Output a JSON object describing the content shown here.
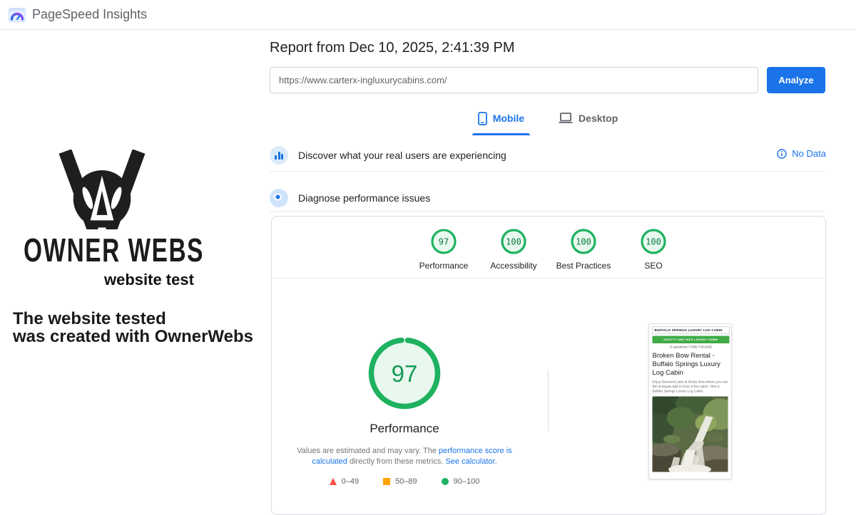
{
  "header": {
    "app_title": "PageSpeed Insights"
  },
  "promo": {
    "brand_name": "OWNER WEBS",
    "subtitle": "website test",
    "note_line1": "The website tested",
    "note_line2": "was created with OwnerWebs"
  },
  "report": {
    "title": "Report from Dec 10, 2025, 2:41:39 PM",
    "url_value": "https://www.carterx-ingluxurycabins.com/",
    "analyze_label": "Analyze",
    "tab_mobile": "Mobile",
    "tab_desktop": "Desktop",
    "discover_label": "Discover what your real users are experiencing",
    "no_data_label": "No Data",
    "diagnose_label": "Diagnose performance issues"
  },
  "scores": {
    "categories": [
      {
        "label": "Performance",
        "score": "97"
      },
      {
        "label": "Accessibility",
        "score": "100"
      },
      {
        "label": "Best Practices",
        "score": "100"
      },
      {
        "label": "SEO",
        "score": "100"
      }
    ]
  },
  "gauge": {
    "score": "97",
    "label": "Performance"
  },
  "disclaimer": {
    "text1": "Values are estimated and may vary. The ",
    "link1": "performance score is calculated",
    "text2": " directly from these metrics. ",
    "link2": "See calculator."
  },
  "legend": [
    {
      "range": "0–49"
    },
    {
      "range": "50–89"
    },
    {
      "range": "90–100"
    }
  ],
  "thumbnail": {
    "site_header": "Buffalo Springs Luxury Log Cabin",
    "banner": "Knotty and Nice Luxury Cabin",
    "phone_line": "✆ questions? (786) 743-6345",
    "heading": "Broken Bow Rental - Buffalo Springs Luxury Log Cabin",
    "body": "Enjoy Diamond Lake at Broke Bow where you can fish & kayak right in front of the cabin. This is Buffalo Springs Luxury Log Cabin."
  },
  "colors": {
    "accent_blue": "#1a73e8",
    "pass_green": "#1eb260",
    "fail_red": "#ff4e42",
    "average_orange": "#ffa400",
    "banner_green": "#41ab47"
  }
}
